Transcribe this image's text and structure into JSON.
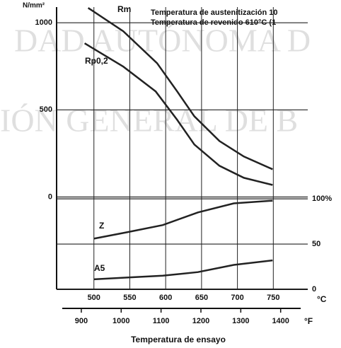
{
  "chart_data": {
    "type": "line",
    "y_unit": "N/mm²",
    "x_title": "Temperatura de ensayo",
    "x_unit": "°C",
    "x2_unit": "°F",
    "annotations": [
      "Temperatura de austenitización 10",
      "Temperatura de revenido 610°C (1"
    ],
    "watermark": [
      "DAD AUTÓNOMA D",
      "IÓN GENERAL DE B"
    ],
    "xlim": [
      448,
      798
    ],
    "xticks": [
      500,
      550,
      600,
      650,
      700,
      750
    ],
    "x2lim": [
      838,
      1468
    ],
    "x2ticks": [
      900,
      1000,
      1100,
      1200,
      1300,
      1400
    ],
    "ylim": [
      -530,
      1090
    ],
    "yticks": [
      0,
      500,
      1000
    ],
    "y2lim": [
      0,
      312
    ],
    "y2ticks": [
      0,
      50,
      {
        "value": 100,
        "label": "100%"
      }
    ],
    "grid": true,
    "series": [
      {
        "name": "Rm",
        "color": "#222",
        "x": [
          492,
          541,
          588,
          616,
          640,
          675,
          709,
          749
        ],
        "values": [
          1085,
          951,
          768,
          606,
          463,
          321,
          232,
          159
        ]
      },
      {
        "name": "Rp0,2",
        "color": "#222",
        "x": [
          487,
          541,
          586,
          616,
          640,
          675,
          709,
          749
        ],
        "values": [
          882,
          748,
          606,
          443,
          301,
          179,
          110,
          69
        ]
      },
      {
        "name": "Z",
        "color": "#222",
        "axis": "y2",
        "x": [
          500,
          546,
          596,
          645,
          695,
          749
        ],
        "values": [
          56,
          63,
          71,
          85,
          95,
          98
        ]
      },
      {
        "name": "A5",
        "color": "#222",
        "axis": "y2",
        "x": [
          500,
          546,
          596,
          645,
          695,
          749
        ],
        "values": [
          11,
          13,
          15,
          19,
          27,
          32
        ]
      }
    ]
  }
}
